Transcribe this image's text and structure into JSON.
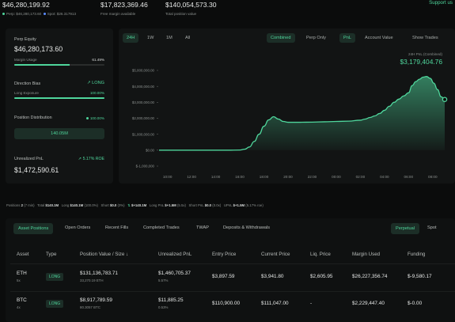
{
  "top": {
    "perp_equity_value": "$46,280,199.92",
    "perp_label": "Perp: $46,280,173.60",
    "spot_label": "Spot: $26.317913",
    "free_margin_value": "$17,823,369.46",
    "free_margin_label": "Free margin available",
    "total_position_value": "$140,054,573.30",
    "total_position_label": "Total position value",
    "support_link": "Support us"
  },
  "left": {
    "perp_equity_label": "Perp Equity",
    "perp_equity_value": "$46,280,173.60",
    "margin_usage_label": "Margin Usage",
    "margin_usage_value": "61.49%",
    "margin_usage_fraction": 0.6149,
    "direction_bias_label": "Direction Bias",
    "direction_bias_value": "LONG",
    "long_exposure_label": "Long Exposure",
    "long_exposure_value": "100.00%",
    "long_exposure_fraction": 1.0,
    "position_distribution_label": "Position Distribution",
    "position_distribution_value": "100.00%",
    "position_distribution_button": "140.05M",
    "unrealized_pnl_label": "Unrealized PnL",
    "roe_value": "5.17% ROE",
    "unrealized_pnl_value": "$1,472,590.61"
  },
  "chart_toolbar": {
    "ranges": [
      "24H",
      "1W",
      "1M",
      "All"
    ],
    "active_range": "24H",
    "modes": [
      "Combined",
      "Perp Only"
    ],
    "active_mode": "Combined",
    "metrics": [
      "PnL",
      "Account Value"
    ],
    "active_metric": "PnL",
    "show_trades": "Show Trades"
  },
  "chart_header": {
    "label": "24H PnL (Combined)",
    "value": "$3,179,404.76"
  },
  "chart_data": {
    "type": "area",
    "title": "",
    "xlabel": "",
    "ylabel": "",
    "ylim": [
      -1000000,
      5000000
    ],
    "y_ticks": [
      -1000000,
      0,
      1000000,
      2000000,
      3000000,
      4000000,
      5000000
    ],
    "y_tick_labels": [
      "$-1,000,000",
      "$0.00",
      "$1,000,000.00",
      "$2,000,000.00",
      "$3,000,000.00",
      "$4,000,000.00",
      "$5,000,000.00"
    ],
    "x_tick_labels": [
      "10:00",
      "12:00",
      "14:00",
      "16:00",
      "18:00",
      "20:00",
      "22:00",
      "00:00",
      "02:00",
      "04:00",
      "06:00",
      "08:00"
    ],
    "x_hours": [
      10,
      12,
      14,
      16,
      18,
      20,
      22,
      24,
      26,
      28,
      30,
      32
    ],
    "x_range": [
      9.3,
      33.0
    ],
    "grid": false,
    "line_color": "#4fd69c",
    "series": [
      {
        "x": [
          9.3,
          10,
          11,
          12,
          13,
          14,
          15,
          16,
          16.4,
          16.8,
          17.2,
          17.6,
          18,
          18.4,
          18.8,
          19.2,
          19.6,
          20,
          21,
          22,
          23,
          24,
          25,
          26,
          26.4,
          26.8,
          27.2,
          27.6,
          28,
          28.4,
          28.8,
          29.2,
          29.6,
          30,
          30.3,
          30.6,
          30.9,
          31.2,
          31.5,
          31.8,
          32.1,
          32.4,
          32.7,
          33.0
        ],
        "y": [
          0,
          0,
          0,
          0,
          0,
          0,
          0,
          10000,
          60000,
          200000,
          550000,
          1000000,
          1500000,
          1900000,
          2100000,
          1950000,
          1800000,
          1750000,
          1750000,
          1760000,
          1780000,
          1800000,
          1820000,
          1880000,
          1950000,
          2050000,
          2150000,
          2300000,
          2500000,
          2750000,
          3000000,
          3200000,
          3400000,
          3600000,
          4050000,
          4300000,
          4450000,
          4580000,
          4620000,
          4500000,
          4200000,
          3800000,
          3350000,
          3179404.76
        ]
      }
    ]
  },
  "stats_line": {
    "positions_label": "Positions",
    "positions_value": "2",
    "positions_sub": "(7 min)",
    "total_label": "Total",
    "total_value": "$140.1M",
    "long_label": "Long",
    "long_value": "$140.1M",
    "long_pct": "(100.0%)",
    "short_label": "Short",
    "short_value": "$0.0",
    "short_pct": "(0%)",
    "delta_value": "$+140.1M",
    "long_pnl_label": "Long PnL",
    "long_pnl_value": "$+1.5M",
    "long_pnl_pct": "(5.5x)",
    "short_pnl_label": "Short PnL",
    "short_pnl_value": "$0.0",
    "short_pnl_pct": "(0.0x)",
    "upnl_label": "UPnL",
    "upnl_value": "$+1.5M",
    "upnl_pct": "(5.17% roe)"
  },
  "bottom_tabs": {
    "items": [
      "Asset Positions",
      "Open Orders",
      "Recent Fills",
      "Completed Trades",
      "TWAP",
      "Deposits & Withdrawals"
    ],
    "active": "Asset Positions",
    "toggle": [
      "Perpetual",
      "Spot"
    ],
    "toggle_active": "Perpetual"
  },
  "table": {
    "headers": [
      "Asset",
      "Type",
      "Position Value / Size",
      "Unrealized PnL",
      "Entry Price",
      "Current Price",
      "Liq. Price",
      "Margin Used",
      "Funding"
    ],
    "rows": [
      {
        "asset": "ETH",
        "leverage": "5x",
        "type": "LONG",
        "position_value": "$131,136,783.71",
        "size": "33,270.19 ETH",
        "pnl": "$1,460,705.37",
        "pnl_pct": "5.57%",
        "entry": "$3,897.59",
        "current": "$3,941.80",
        "liq": "$2,605.95",
        "margin": "$26,227,356.74",
        "funding": "$-9,580.17"
      },
      {
        "asset": "BTC",
        "leverage": "4x",
        "type": "LONG",
        "position_value": "$8,917,789.59",
        "size": "80.3057 BTC",
        "pnl": "$11,885.25",
        "pnl_pct": "0.53%",
        "entry": "$110,900.00",
        "current": "$111,047.00",
        "liq": "-",
        "margin": "$2,229,447.40",
        "funding": "$-0.00"
      }
    ]
  }
}
